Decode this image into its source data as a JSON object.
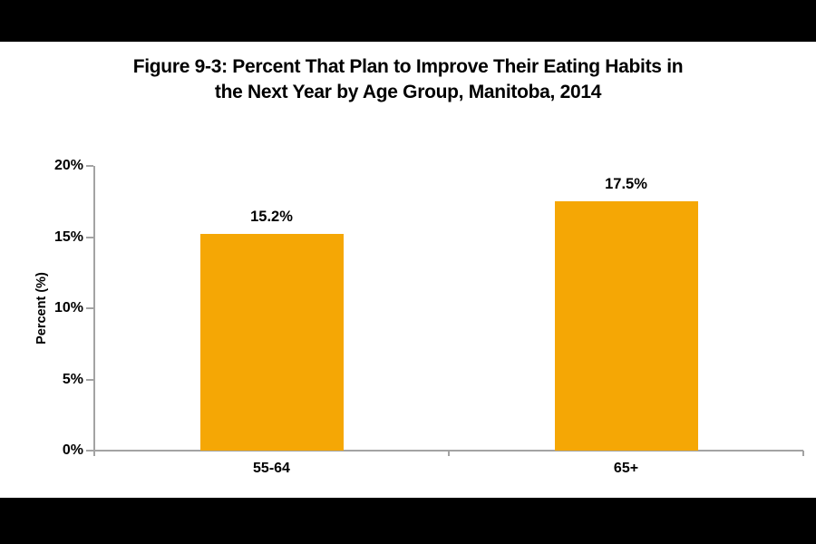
{
  "page": {
    "background": "#FFFFFF",
    "letterbox_color": "#000000"
  },
  "chart_data": {
    "type": "bar",
    "title": "Figure 9-3: Percent That Plan to Improve Their Eating Habits in the Next Year by Age Group, Manitoba, 2014",
    "title_lines": [
      "Figure 9-3: Percent That Plan to Improve Their Eating Habits in",
      "the Next Year by Age Group, Manitoba, 2014"
    ],
    "categories": [
      "55-64",
      "65+"
    ],
    "values": [
      15.2,
      17.5
    ],
    "value_labels": [
      "15.2%",
      "17.5%"
    ],
    "xlabel": "",
    "ylabel": "Percent (%)",
    "ytick_labels": [
      "0%",
      "5%",
      "10%",
      "15%",
      "20%"
    ],
    "ylim": [
      0,
      20
    ],
    "grid": "off",
    "legend": "none",
    "bar_color": "#F5A705",
    "axis_color": "#A3A3A3",
    "text_color": "#000000"
  }
}
